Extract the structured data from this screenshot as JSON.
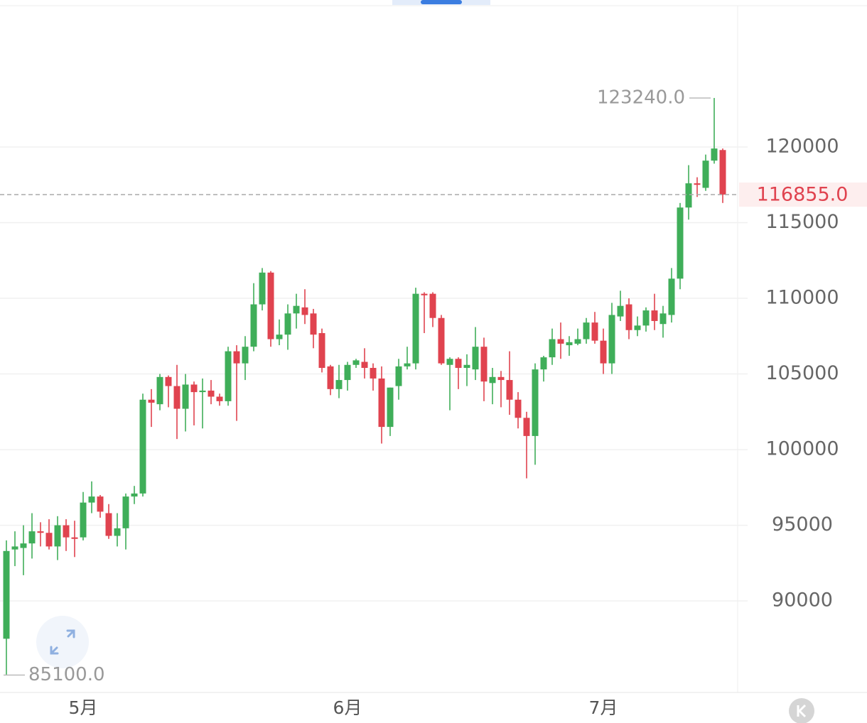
{
  "chart_data": {
    "type": "candlestick",
    "categories": [
      null,
      null,
      null,
      null,
      null,
      null,
      null,
      null,
      null,
      "5月",
      null,
      null,
      null,
      null,
      null,
      null,
      null,
      null,
      null,
      null,
      null,
      null,
      null,
      null,
      null,
      null,
      null,
      null,
      null,
      null,
      null,
      null,
      null,
      null,
      null,
      null,
      null,
      null,
      null,
      null,
      "6月",
      null,
      null,
      null,
      null,
      null,
      null,
      null,
      null,
      null,
      null,
      null,
      null,
      null,
      null,
      null,
      null,
      null,
      null,
      null,
      null,
      null,
      null,
      null,
      null,
      null,
      null,
      null,
      null,
      null,
      "7月",
      null,
      null,
      null,
      null,
      null,
      null,
      null,
      null,
      null,
      null,
      null,
      null,
      null,
      null
    ],
    "open": [
      87500,
      93400,
      93500,
      93800,
      94600,
      94500,
      93600,
      95000,
      94200,
      94200,
      96500,
      96900,
      95800,
      94300,
      94800,
      96900,
      97100,
      103300,
      103000,
      104800,
      104200,
      102700,
      104300,
      103800,
      103900,
      103500,
      103200,
      106500,
      105700,
      106800,
      109600,
      111700,
      107300,
      107600,
      109000,
      109400,
      109000,
      107700,
      105500,
      104000,
      104600,
      105600,
      105800,
      105400,
      104700,
      101500,
      104200,
      105500,
      105700,
      110300,
      110300,
      108700,
      105600,
      106000,
      105400,
      105300,
      106800,
      104400,
      104800,
      104600,
      103300,
      102100,
      100900,
      105300,
      106100,
      107300,
      106900,
      107000,
      107300,
      108400,
      107200,
      105700,
      108800,
      109600,
      107900,
      108200,
      109200,
      108300,
      108900,
      111300,
      116000,
      117600,
      117300,
      119100,
      119800
    ],
    "high": [
      94000,
      94600,
      95000,
      95800,
      95200,
      95400,
      95600,
      95400,
      95300,
      97200,
      97900,
      97000,
      96400,
      95800,
      97100,
      97600,
      103700,
      104000,
      105000,
      104900,
      105600,
      105000,
      104500,
      104700,
      104600,
      103700,
      106800,
      106900,
      107500,
      111000,
      112000,
      111800,
      108600,
      109600,
      110300,
      110600,
      109300,
      108000,
      105600,
      105600,
      105800,
      106000,
      106700,
      105700,
      105500,
      104100,
      106000,
      106800,
      110700,
      110400,
      110400,
      108900,
      106100,
      106100,
      106300,
      108100,
      107400,
      105400,
      105200,
      106500,
      103800,
      102500,
      105700,
      106200,
      108000,
      108400,
      107500,
      108000,
      108700,
      109100,
      108000,
      109700,
      110500,
      110000,
      108800,
      109400,
      110300,
      109500,
      112000,
      116300,
      118800,
      118000,
      119500,
      123240,
      119900
    ],
    "low": [
      85100,
      92300,
      91700,
      92800,
      93600,
      93400,
      92700,
      93300,
      92900,
      94000,
      95800,
      95500,
      94100,
      93600,
      93400,
      96400,
      96900,
      101500,
      102600,
      102800,
      100700,
      101200,
      101600,
      101400,
      103000,
      102900,
      102900,
      101900,
      104600,
      106500,
      109200,
      106800,
      106900,
      106600,
      108000,
      108300,
      106700,
      105100,
      103600,
      103400,
      103900,
      105400,
      104700,
      103900,
      100400,
      100900,
      103300,
      105300,
      105300,
      107700,
      108100,
      105600,
      102600,
      104000,
      104200,
      104600,
      103200,
      103000,
      102800,
      102300,
      101400,
      98100,
      99000,
      104500,
      105600,
      106000,
      106200,
      106900,
      107000,
      107000,
      105000,
      105000,
      108500,
      107300,
      107500,
      107800,
      107900,
      107400,
      108400,
      110600,
      115200,
      116700,
      117100,
      118900,
      116300
    ],
    "close": [
      93300,
      93600,
      93800,
      94600,
      94500,
      93600,
      95000,
      94200,
      94100,
      96500,
      96900,
      95900,
      94300,
      94800,
      96900,
      97100,
      103300,
      103100,
      104800,
      104200,
      102700,
      104300,
      103800,
      103900,
      103500,
      103200,
      106500,
      105700,
      106800,
      109600,
      111700,
      107300,
      107600,
      109000,
      109500,
      108900,
      107600,
      105400,
      104000,
      104600,
      105600,
      105900,
      105400,
      104700,
      101500,
      104100,
      105500,
      105700,
      110300,
      110200,
      108700,
      105700,
      106000,
      105400,
      105600,
      106800,
      104500,
      104800,
      104600,
      103300,
      102100,
      100900,
      105300,
      106100,
      107300,
      107000,
      107100,
      107300,
      108400,
      107200,
      105700,
      108900,
      109500,
      107900,
      108200,
      109200,
      108500,
      109000,
      111300,
      116000,
      117600,
      117500,
      119100,
      119900,
      116855
    ],
    "up_color": "#3fae59",
    "down_color": "#e0434f",
    "ylim": [
      83950,
      129340
    ],
    "yticks": [
      90000,
      95000,
      100000,
      105000,
      110000,
      115000,
      120000
    ],
    "grid": true,
    "annotations": [
      {
        "value": 123240,
        "label": "123240.0"
      },
      {
        "value": 85100,
        "label": "85100.0"
      }
    ],
    "last_price": {
      "value": 116855,
      "label": "116855.0"
    }
  }
}
